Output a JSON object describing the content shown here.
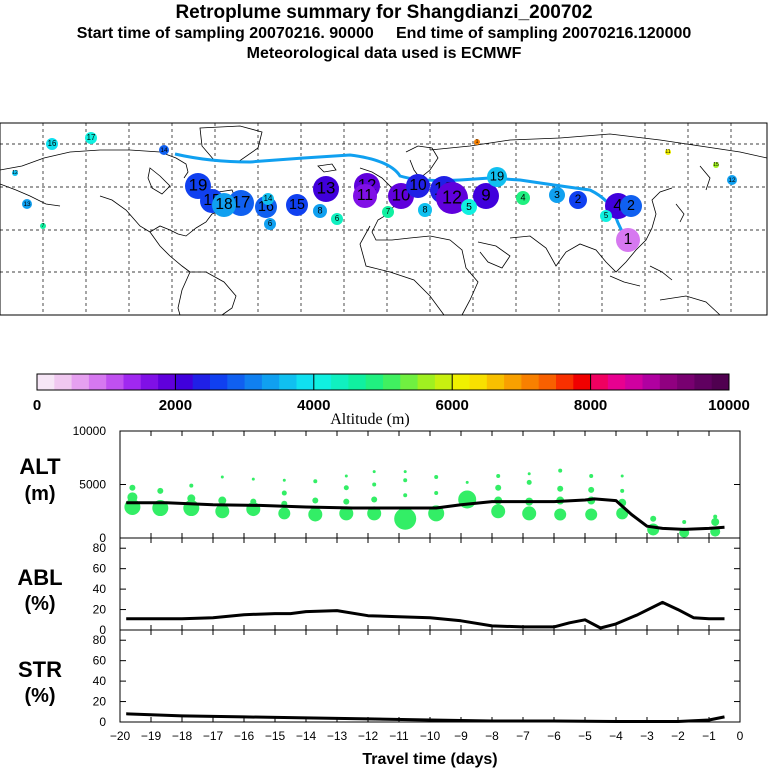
{
  "titles": {
    "line1": "Retroplume summary for Shangdianzi_200702",
    "line2": "Start time of sampling 20070216. 90000     End time of sampling 20070216.120000",
    "line3": "Meteorological data used is ECMWF"
  },
  "colorbar": {
    "label": "Altitude (m)",
    "ticks": [
      "0",
      "2000",
      "4000",
      "6000",
      "8000",
      "10000"
    ],
    "min": 0,
    "max": 10000,
    "colors": [
      "#f6e6f6",
      "#f0c8f0",
      "#e6a0f0",
      "#d678f0",
      "#c050f0",
      "#a028f0",
      "#8010e6",
      "#6000dc",
      "#4000dc",
      "#2020e6",
      "#1040f0",
      "#1060f0",
      "#1080f0",
      "#10a0f0",
      "#10c0f0",
      "#10e0f0",
      "#10f0e0",
      "#10f0c0",
      "#10f0a0",
      "#20f080",
      "#40f060",
      "#70f040",
      "#a0f020",
      "#c8f010",
      "#f0f000",
      "#f8e000",
      "#f8c000",
      "#f8a000",
      "#f88000",
      "#f86000",
      "#f83000",
      "#f00000",
      "#f00060",
      "#e80090",
      "#d000a0",
      "#b000a0",
      "#900080",
      "#780070",
      "#600060",
      "#500050"
    ]
  },
  "map": {
    "trajectory_color": "#10a0f0",
    "markers": [
      {
        "label": "16",
        "altitude": 3800
      },
      {
        "label": "17",
        "altitude": 4200
      },
      {
        "label": "14",
        "altitude": 2800
      },
      {
        "label": "19",
        "altitude": 2600
      },
      {
        "label": "15",
        "altitude": 2700
      },
      {
        "label": "17",
        "altitude": 2900
      },
      {
        "label": "16",
        "altitude": 2800
      },
      {
        "label": "14",
        "altitude": 3500
      },
      {
        "label": "18",
        "altitude": 3400
      },
      {
        "label": "15",
        "altitude": 2700
      },
      {
        "label": "13",
        "altitude": 2200
      },
      {
        "label": "12",
        "altitude": 1800
      },
      {
        "label": "11",
        "altitude": 1700
      },
      {
        "label": "10",
        "altitude": 1900
      },
      {
        "label": "10",
        "altitude": 2300
      },
      {
        "label": "18",
        "altitude": 2400
      },
      {
        "label": "12",
        "altitude": 1800
      },
      {
        "label": "9",
        "altitude": 2100
      },
      {
        "label": "8",
        "altitude": 3700
      },
      {
        "label": "6",
        "altitude": 4300
      },
      {
        "label": "7",
        "altitude": 4600
      },
      {
        "label": "5",
        "altitude": 4200
      },
      {
        "label": "19",
        "altitude": 3600
      },
      {
        "label": "4",
        "altitude": 4900
      },
      {
        "label": "3",
        "altitude": 3300
      },
      {
        "label": "2",
        "altitude": 2600
      },
      {
        "label": "4",
        "altitude": 2200
      },
      {
        "label": "5",
        "altitude": 4100
      },
      {
        "label": "1",
        "altitude": 800
      },
      {
        "label": "2",
        "altitude": 2900
      },
      {
        "label": "1",
        "altitude": 7000
      },
      {
        "label": "11",
        "altitude": 6000
      },
      {
        "label": "12",
        "altitude": 3400
      },
      {
        "label": "13",
        "altitude": 3300
      },
      {
        "label": "12",
        "altitude": 3500
      },
      {
        "label": "15",
        "altitude": 5700
      },
      {
        "label": "7",
        "altitude": 4500
      },
      {
        "label": "8",
        "altitude": 3400
      },
      {
        "label": "6",
        "altitude": 3300
      }
    ]
  },
  "chart_data": [
    {
      "type": "line",
      "panel": "ALT",
      "ylabel": "ALT (m)",
      "ylabel_top": "ALT",
      "ylabel_bottom": "(m)",
      "ylim": [
        0,
        10000
      ],
      "yticks": [
        "0",
        "5000",
        "10000"
      ],
      "series": [
        {
          "name": "mean altitude",
          "x": [
            -19.8,
            -18.5,
            -17,
            -15.5,
            -14,
            -12.5,
            -11,
            -9.8,
            -9,
            -8,
            -7,
            -6,
            -5,
            -4.7,
            -4,
            -3.5,
            -3,
            -2.5,
            -1.8,
            -1,
            -0.5
          ],
          "values": [
            3300,
            3300,
            3100,
            3050,
            2900,
            2800,
            2800,
            2800,
            3100,
            3400,
            3400,
            3400,
            3550,
            3650,
            3500,
            2200,
            1100,
            900,
            800,
            900,
            1000
          ]
        }
      ],
      "scatter": {
        "name": "plume altitudes",
        "color": "#33ee66",
        "points": [
          {
            "x": -19.6,
            "y": 2900,
            "s": 8
          },
          {
            "x": -19.6,
            "y": 3800,
            "s": 5
          },
          {
            "x": -19.6,
            "y": 4700,
            "s": 3
          },
          {
            "x": -18.7,
            "y": 2800,
            "s": 8
          },
          {
            "x": -18.7,
            "y": 4400,
            "s": 3
          },
          {
            "x": -17.7,
            "y": 2800,
            "s": 8
          },
          {
            "x": -17.7,
            "y": 3700,
            "s": 4
          },
          {
            "x": -17.7,
            "y": 4900,
            "s": 2
          },
          {
            "x": -16.7,
            "y": 2500,
            "s": 7
          },
          {
            "x": -16.7,
            "y": 3500,
            "s": 4
          },
          {
            "x": -16.7,
            "y": 5700,
            "s": 1.5
          },
          {
            "x": -15.7,
            "y": 2700,
            "s": 7
          },
          {
            "x": -15.7,
            "y": 3400,
            "s": 3
          },
          {
            "x": -15.7,
            "y": 5500,
            "s": 1.5
          },
          {
            "x": -14.7,
            "y": 2300,
            "s": 6
          },
          {
            "x": -14.7,
            "y": 3200,
            "s": 3
          },
          {
            "x": -14.7,
            "y": 4200,
            "s": 2.5
          },
          {
            "x": -14.7,
            "y": 5400,
            "s": 1.5
          },
          {
            "x": -13.7,
            "y": 2200,
            "s": 7
          },
          {
            "x": -13.7,
            "y": 3500,
            "s": 3
          },
          {
            "x": -13.7,
            "y": 5300,
            "s": 2
          },
          {
            "x": -12.7,
            "y": 2300,
            "s": 7
          },
          {
            "x": -12.7,
            "y": 3400,
            "s": 3
          },
          {
            "x": -12.7,
            "y": 4700,
            "s": 2.5
          },
          {
            "x": -12.7,
            "y": 5800,
            "s": 1.5
          },
          {
            "x": -11.8,
            "y": 2300,
            "s": 7
          },
          {
            "x": -11.8,
            "y": 3600,
            "s": 3
          },
          {
            "x": -11.8,
            "y": 5000,
            "s": 2
          },
          {
            "x": -11.8,
            "y": 6200,
            "s": 1.5
          },
          {
            "x": -10.8,
            "y": 1800,
            "s": 11
          },
          {
            "x": -10.8,
            "y": 4000,
            "s": 2
          },
          {
            "x": -10.8,
            "y": 5400,
            "s": 2
          },
          {
            "x": -10.8,
            "y": 6200,
            "s": 1.5
          },
          {
            "x": -9.8,
            "y": 2300,
            "s": 8
          },
          {
            "x": -9.8,
            "y": 4200,
            "s": 2
          },
          {
            "x": -9.8,
            "y": 5700,
            "s": 2
          },
          {
            "x": -8.8,
            "y": 3600,
            "s": 9
          },
          {
            "x": -8.8,
            "y": 5200,
            "s": 1.5
          },
          {
            "x": -7.8,
            "y": 2500,
            "s": 7
          },
          {
            "x": -7.8,
            "y": 3500,
            "s": 4
          },
          {
            "x": -7.8,
            "y": 4700,
            "s": 3
          },
          {
            "x": -7.8,
            "y": 5800,
            "s": 2
          },
          {
            "x": -6.8,
            "y": 2300,
            "s": 7
          },
          {
            "x": -6.8,
            "y": 3400,
            "s": 4
          },
          {
            "x": -6.8,
            "y": 5200,
            "s": 2.5
          },
          {
            "x": -6.8,
            "y": 6000,
            "s": 1.5
          },
          {
            "x": -5.8,
            "y": 2200,
            "s": 6
          },
          {
            "x": -5.8,
            "y": 3500,
            "s": 4
          },
          {
            "x": -5.8,
            "y": 4600,
            "s": 3
          },
          {
            "x": -5.8,
            "y": 6300,
            "s": 2
          },
          {
            "x": -4.8,
            "y": 2200,
            "s": 6
          },
          {
            "x": -4.8,
            "y": 3500,
            "s": 4
          },
          {
            "x": -4.8,
            "y": 4500,
            "s": 3
          },
          {
            "x": -4.8,
            "y": 5800,
            "s": 2
          },
          {
            "x": -3.8,
            "y": 2300,
            "s": 6
          },
          {
            "x": -3.8,
            "y": 3300,
            "s": 4
          },
          {
            "x": -3.8,
            "y": 4400,
            "s": 2
          },
          {
            "x": -3.8,
            "y": 5800,
            "s": 1.5
          },
          {
            "x": -2.8,
            "y": 800,
            "s": 6
          },
          {
            "x": -2.8,
            "y": 1800,
            "s": 3
          },
          {
            "x": -1.8,
            "y": 500,
            "s": 5
          },
          {
            "x": -1.8,
            "y": 1500,
            "s": 2
          },
          {
            "x": -0.8,
            "y": 600,
            "s": 5
          },
          {
            "x": -0.8,
            "y": 1500,
            "s": 4
          },
          {
            "x": -0.8,
            "y": 2000,
            "s": 2
          }
        ]
      }
    },
    {
      "type": "line",
      "panel": "ABL",
      "ylabel": "ABL (%)",
      "ylabel_top": "ABL",
      "ylabel_bottom": "(%)",
      "ylim": [
        0,
        90
      ],
      "yticks": [
        "0",
        "20",
        "40",
        "60",
        "80"
      ],
      "series": [
        {
          "name": "fraction in boundary layer",
          "x": [
            -19.8,
            -18,
            -17,
            -16,
            -15,
            -14.5,
            -14,
            -13,
            -12,
            -11,
            -10,
            -9,
            -8,
            -7,
            -6,
            -5.5,
            -5,
            -4.5,
            -4,
            -3.3,
            -2.5,
            -2,
            -1.5,
            -1,
            -0.5
          ],
          "values": [
            11,
            11,
            12,
            15,
            16,
            16,
            18,
            19,
            14,
            13,
            12,
            9,
            4,
            3,
            3,
            7,
            10,
            2,
            6,
            15,
            27,
            20,
            12,
            11,
            11
          ]
        }
      ]
    },
    {
      "type": "line",
      "panel": "STR",
      "ylabel": "STR (%)",
      "ylabel_top": "STR",
      "ylabel_bottom": "(%)",
      "ylim": [
        0,
        90
      ],
      "yticks": [
        "0",
        "20",
        "40",
        "60",
        "80"
      ],
      "xlabel": "Travel time (days)",
      "xlim": [
        -20,
        0
      ],
      "xticks": [
        "−20",
        "−19",
        "−18",
        "−17",
        "−16",
        "−15",
        "−14",
        "−13",
        "−12",
        "−11",
        "−10",
        "−9",
        "−8",
        "−7",
        "−6",
        "−5",
        "−4",
        "−3",
        "−2",
        "−1",
        "0"
      ],
      "series": [
        {
          "name": "fraction in stratosphere",
          "x": [
            -19.8,
            -18,
            -16,
            -14,
            -12,
            -10,
            -8,
            -6,
            -4,
            -2,
            -1,
            -0.5
          ],
          "values": [
            8,
            6,
            5,
            4,
            3,
            2,
            1,
            1,
            0.5,
            0.5,
            2,
            5
          ]
        }
      ]
    }
  ]
}
